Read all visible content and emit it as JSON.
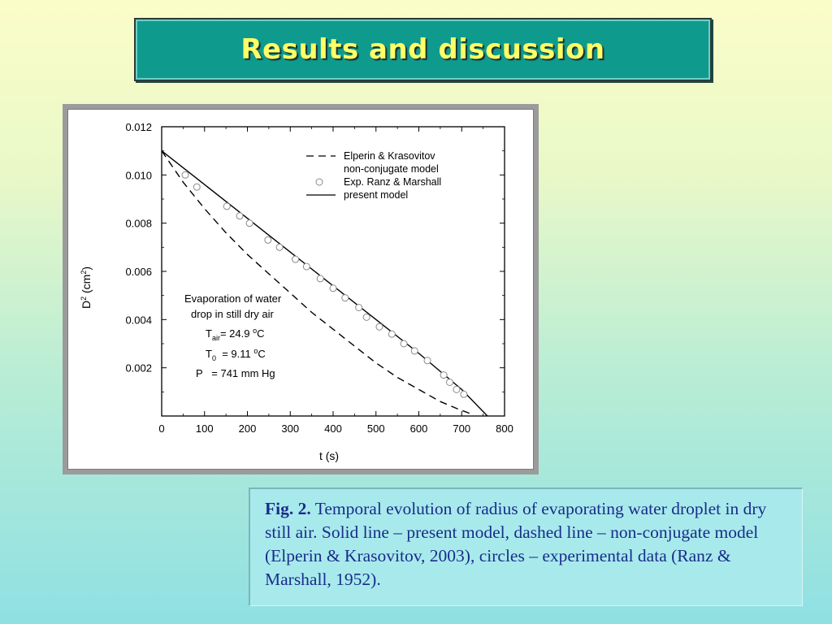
{
  "slide": {
    "title": "Results and discussion"
  },
  "caption": {
    "label": "Fig. 2.",
    "text": " Temporal evolution of radius of evaporating water droplet in dry still air. Solid line – present model, dashed line – non-conjugate model (Elperin & Krasovitov, 2003), circles – experimental data (Ranz & Marshall, 1952)."
  },
  "chart_data": {
    "type": "line",
    "xlabel": "t (s)",
    "ylabel_main": "D",
    "ylabel_sup": "2",
    "ylabel_unit_open": " (cm",
    "ylabel_unit_sup": "2",
    "ylabel_unit_close": ")",
    "xlim": [
      0,
      800
    ],
    "ylim": [
      0,
      0.012
    ],
    "xticks": [
      "0",
      "100",
      "200",
      "300",
      "400",
      "500",
      "600",
      "700",
      "800"
    ],
    "yticks": [
      "0.002",
      "0.004",
      "0.006",
      "0.008",
      "0.010",
      "0.012"
    ],
    "legend_position": "top-right",
    "legend": [
      {
        "style": "dashed",
        "lines": [
          "Elperin & Krasovitov",
          "non-conjugate model"
        ]
      },
      {
        "style": "circle",
        "lines": [
          "Exp. Ranz & Marshall"
        ]
      },
      {
        "style": "solid",
        "lines": [
          "present model"
        ]
      }
    ],
    "annotation": {
      "line1": "Evaporation of water",
      "line2": "drop in still dry air",
      "tair_label": "T",
      "tair_sub": "air",
      "tair_value": "= 24.9 ",
      "tair_deg": "o",
      "tair_unit": "C",
      "t0_label": "T",
      "t0_sub": "0",
      "t0_value": "  = 9.11 ",
      "t0_deg": "o",
      "t0_unit": "C",
      "p_text": "P   = 741 mm Hg"
    },
    "series": [
      {
        "name": "present model",
        "style": "solid",
        "x": [
          0,
          100,
          200,
          300,
          400,
          500,
          600,
          700,
          760
        ],
        "y": [
          0.011,
          0.0096,
          0.0082,
          0.0068,
          0.0054,
          0.004,
          0.0026,
          0.0011,
          0.0
        ]
      },
      {
        "name": "Elperin & Krasovitov non-conjugate model",
        "style": "dashed",
        "x": [
          0,
          50,
          100,
          150,
          200,
          250,
          300,
          350,
          400,
          450,
          500,
          550,
          600,
          650,
          690,
          720
        ],
        "y": [
          0.011,
          0.0097,
          0.0086,
          0.0076,
          0.0067,
          0.0059,
          0.0051,
          0.0043,
          0.0036,
          0.0029,
          0.0022,
          0.0016,
          0.0011,
          0.0006,
          0.0003,
          0.0001
        ]
      },
      {
        "name": "Exp. Ranz & Marshall",
        "style": "circle",
        "x": [
          55,
          82,
          152,
          182,
          205,
          248,
          275,
          312,
          338,
          370,
          400,
          428,
          460,
          478,
          508,
          537,
          565,
          590,
          620,
          658,
          672,
          688,
          705
        ],
        "y": [
          0.01,
          0.0095,
          0.0087,
          0.0083,
          0.008,
          0.0073,
          0.007,
          0.0065,
          0.0062,
          0.0057,
          0.0053,
          0.0049,
          0.0045,
          0.0041,
          0.0037,
          0.0034,
          0.003,
          0.0027,
          0.0023,
          0.0017,
          0.0014,
          0.0011,
          0.0009
        ]
      }
    ]
  }
}
